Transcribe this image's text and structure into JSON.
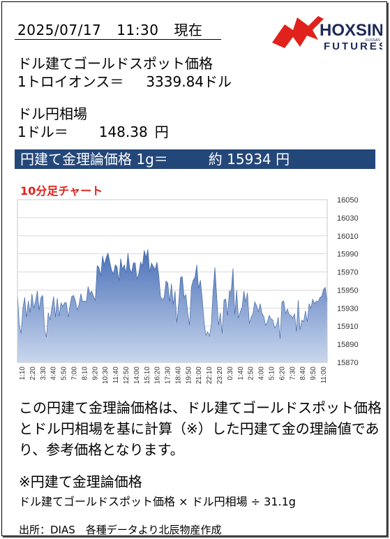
{
  "header": {
    "date": "2025/07/17",
    "time": "11:30",
    "now_label": "現在"
  },
  "logo": {
    "brand": "HOXSIN",
    "sub": "FUTURES",
    "small": "RUSSAN",
    "color_red": "#e0211c",
    "color_navy": "#1d2a5a"
  },
  "gold_spot": {
    "label": "ドル建てゴールドスポット価格",
    "unit_label": "1トロイオンス＝",
    "value": "3339.84",
    "currency": "ドル"
  },
  "fx": {
    "label": "ドル円相場",
    "unit_label": "1ドル＝",
    "value": "148.38",
    "currency": "円"
  },
  "banner": {
    "text": "円建て金理論価格 1g＝",
    "approx": "約",
    "value": "15934",
    "currency": "円",
    "bg_color": "#24477a"
  },
  "chart_title": "10分足チャート",
  "chart_data": {
    "type": "area",
    "title": "10分足チャート",
    "xlabel": "",
    "ylabel": "",
    "ylim": [
      15870,
      16050
    ],
    "yticks": [
      15870,
      15890,
      15910,
      15930,
      15950,
      15970,
      15990,
      16010,
      16030,
      16050
    ],
    "xticks": [
      "1:10",
      "2:20",
      "3:30",
      "4:40",
      "5:50",
      "7:00",
      "8:10",
      "9:20",
      "10:30",
      "11:40",
      "12:50",
      "14:00",
      "15:10",
      "16:20",
      "17:30",
      "18:40",
      "19:50",
      "21:00",
      "22:10",
      "23:20",
      "0:30",
      "1:40",
      "2:50",
      "4:00",
      "5:10",
      "6:20",
      "7:30",
      "8:40",
      "9:50",
      "11:00"
    ],
    "grid": "horizontal",
    "fill_color": "#4a70b8",
    "values": [
      15947,
      15912,
      15902,
      15930,
      15942,
      15920,
      15938,
      15925,
      15946,
      15930,
      15938,
      15949,
      15928,
      15942,
      15944,
      15906,
      15898,
      15925,
      15917,
      15931,
      15943,
      15920,
      15941,
      15921,
      15936,
      15932,
      15936,
      15936,
      15920,
      15933,
      15943,
      15944,
      15938,
      15928,
      15934,
      15946,
      15937,
      15938,
      15937,
      15954,
      15946,
      15949,
      15943,
      15939,
      15977,
      15975,
      15966,
      15988,
      15978,
      15986,
      15991,
      15981,
      15972,
      15968,
      15978,
      15976,
      15960,
      15985,
      15973,
      15978,
      15969,
      15991,
      15974,
      15969,
      15980,
      15980,
      15962,
      15969,
      15981,
      15977,
      15994,
      15986,
      15995,
      15970,
      15980,
      15976,
      15973,
      15981,
      15967,
      15943,
      15939,
      15942,
      15960,
      15958,
      15937,
      15957,
      15934,
      15949,
      15914,
      15936,
      15964,
      15965,
      15942,
      15945,
      15925,
      15911,
      15953,
      15961,
      15964,
      15978,
      15952,
      15961,
      15941,
      15916,
      15900,
      15904,
      15899,
      15912,
      15949,
      15975,
      15944,
      15911,
      15925,
      15902,
      15939,
      15940,
      15922,
      15949,
      15949,
      15974,
      15923,
      15950,
      15919,
      15926,
      15931,
      15949,
      15937,
      15947,
      15913,
      15920,
      15924,
      15937,
      15933,
      15926,
      15935,
      15924,
      15921,
      15911,
      15915,
      15922,
      15918,
      15917,
      15908,
      15911,
      15920,
      15896,
      15937,
      15938,
      15924,
      15929,
      15923,
      15922,
      15919,
      15924,
      15904,
      15939,
      15906,
      15917,
      15915,
      15927,
      15915,
      15935,
      15930,
      15940,
      15935,
      15938,
      15937,
      15942,
      15943,
      15951,
      15953,
      15934
    ]
  },
  "description": "この円建て金理論価格は、ドル建てゴールドスポット価格とドル円相場を基に計算（※）した円建て金の理論値であり、参考価格となります。",
  "note": {
    "title": "※円建て金理論価格",
    "formula": "ドル建てゴールドスポット価格 × ドル円相場 ÷ 31.1g"
  },
  "source": "出所：DIAS　各種データより北辰物産作成"
}
